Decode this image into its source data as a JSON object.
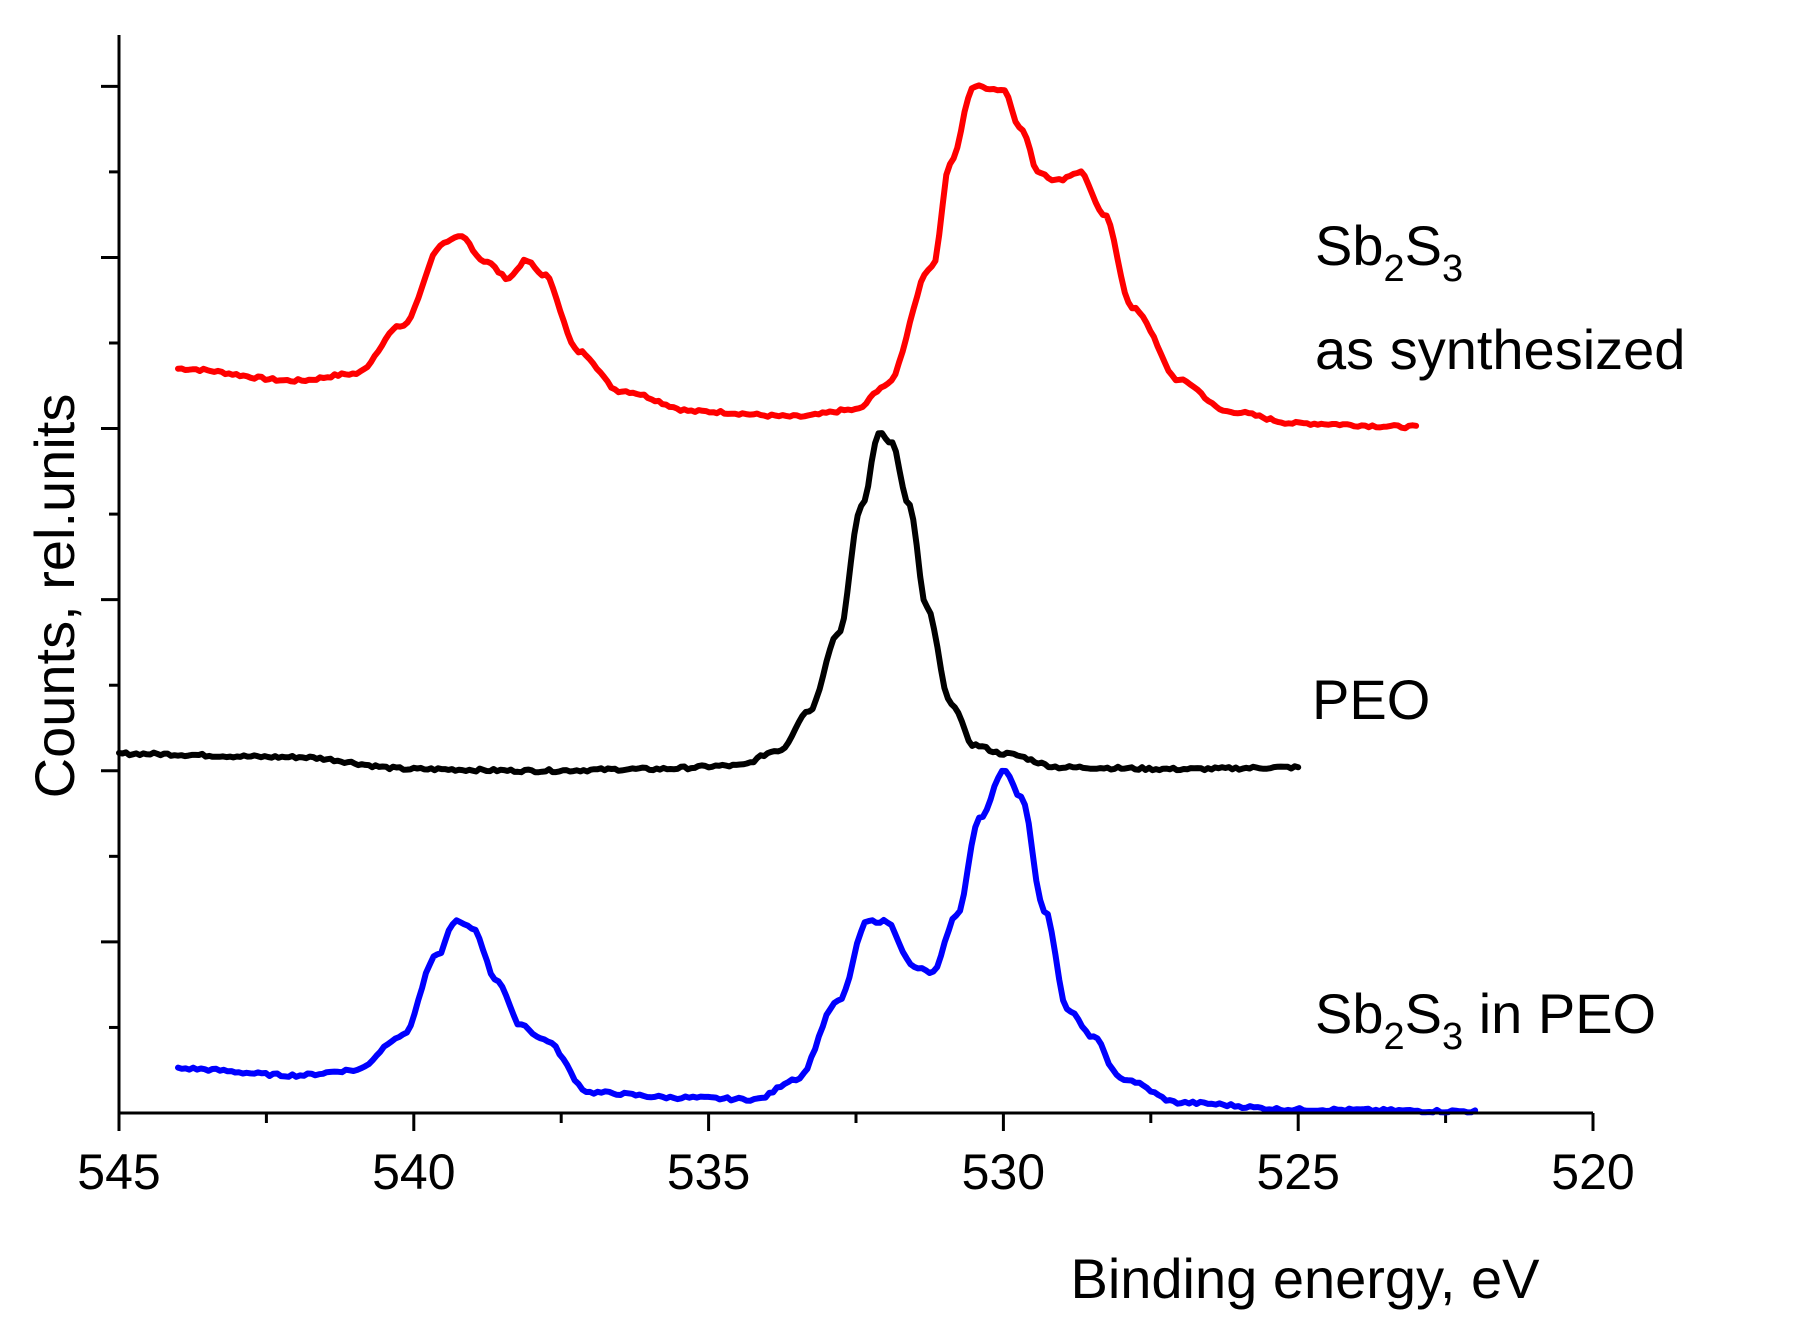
{
  "chart_data": {
    "type": "line",
    "title": "",
    "xlabel": "Binding energy, eV",
    "ylabel": "Counts, rel.units",
    "xlim": [
      545,
      520
    ],
    "x_reversed": true,
    "xticks": [
      545,
      540,
      535,
      530,
      525,
      520
    ],
    "xtick_labels": [
      "545",
      "540",
      "535",
      "530",
      "525",
      "520"
    ],
    "ylim": [
      0,
      6.3
    ],
    "y_tick_labels_shown": false,
    "grid": false,
    "legend": "none",
    "series": [
      {
        "name": "Sb2S3 as synthesized",
        "color": "#ff0000",
        "label_lines": [
          {
            "base": "Sb",
            "sub1": "2",
            "mid": "S",
            "sub2": "3",
            "tail": ""
          },
          {
            "text": "as synthesized"
          }
        ],
        "x": [
          544,
          542,
          541,
          540.2,
          539.5,
          539.2,
          538.8,
          538.4,
          538.1,
          537.8,
          537.2,
          536.5,
          535.2,
          533.5,
          532.5,
          532.0,
          531.2,
          530.9,
          530.5,
          530.0,
          529.7,
          529.4,
          529.1,
          528.7,
          528.3,
          527.8,
          527.0,
          526.2,
          525.0,
          523.0
        ],
        "values": [
          4.35,
          4.28,
          4.32,
          4.6,
          5.08,
          5.12,
          4.98,
          4.88,
          4.98,
          4.9,
          4.45,
          4.22,
          4.1,
          4.07,
          4.11,
          4.25,
          4.95,
          5.55,
          6.0,
          5.98,
          5.75,
          5.5,
          5.45,
          5.5,
          5.25,
          4.7,
          4.28,
          4.1,
          4.03,
          4.01
        ]
      },
      {
        "name": "PEO",
        "color": "#000000",
        "label_lines": [
          {
            "text": "PEO"
          }
        ],
        "x": [
          545,
          542,
          540,
          538,
          536,
          534.5,
          533.8,
          533.3,
          532.8,
          532.4,
          532.1,
          531.9,
          531.6,
          531.3,
          530.9,
          530.5,
          530.0,
          529.0,
          527.0,
          525.0
        ],
        "values": [
          2.1,
          2.08,
          2.01,
          2.0,
          2.01,
          2.03,
          2.12,
          2.35,
          2.8,
          3.55,
          3.98,
          3.92,
          3.55,
          2.95,
          2.4,
          2.15,
          2.1,
          2.02,
          2.01,
          2.02
        ]
      },
      {
        "name": "Sb2S3 in PEO",
        "color": "#0000ff",
        "label_lines": [
          {
            "base": "Sb",
            "sub1": "2",
            "mid": "S",
            "sub2": "3",
            "tail": " in PEO"
          }
        ],
        "x": [
          544,
          542,
          541,
          540.2,
          539.6,
          539.3,
          539.0,
          538.6,
          538.2,
          537.8,
          537.0,
          535.5,
          534.2,
          533.5,
          532.8,
          532.3,
          532.0,
          531.5,
          531.2,
          530.8,
          530.4,
          530.0,
          529.7,
          529.3,
          528.9,
          528.5,
          528.0,
          527.0,
          525.0,
          522.0
        ],
        "values": [
          0.26,
          0.22,
          0.25,
          0.45,
          0.92,
          1.12,
          1.08,
          0.78,
          0.52,
          0.43,
          0.12,
          0.09,
          0.08,
          0.2,
          0.65,
          1.12,
          1.12,
          0.85,
          0.82,
          1.15,
          1.72,
          2.0,
          1.85,
          1.18,
          0.6,
          0.45,
          0.2,
          0.06,
          0.02,
          0.01
        ]
      }
    ]
  }
}
